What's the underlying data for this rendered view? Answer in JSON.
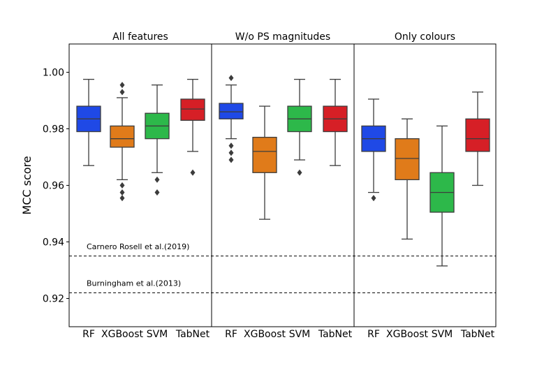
{
  "chart_data": {
    "type": "box",
    "ylabel": "MCC score",
    "ylim": [
      0.91,
      1.01
    ],
    "yticks": [
      "0.92",
      "0.94",
      "0.96",
      "0.98",
      "1.00"
    ],
    "grid": false,
    "categories": [
      "RF",
      "XGBoost",
      "SVM",
      "TabNet"
    ],
    "colors": {
      "RF": "#1f49e6",
      "XGBoost": "#e07b1a",
      "SVM": "#2db84a",
      "TabNet": "#d61f26"
    },
    "reference_lines": [
      {
        "label": "Carnero Rosell et al.(2019)",
        "y": 0.935
      },
      {
        "label": "Burningham et al.(2013)",
        "y": 0.922
      }
    ],
    "panels": [
      {
        "title": "All features",
        "boxes": [
          {
            "category": "RF",
            "whisker_low": 0.967,
            "q1": 0.979,
            "median": 0.9835,
            "q3": 0.988,
            "whisker_high": 0.9975,
            "outliers": []
          },
          {
            "category": "XGBoost",
            "whisker_low": 0.962,
            "q1": 0.9735,
            "median": 0.9765,
            "q3": 0.981,
            "whisker_high": 0.991,
            "outliers": [
              0.9955,
              0.993,
              0.96,
              0.9575,
              0.9555
            ]
          },
          {
            "category": "SVM",
            "whisker_low": 0.9645,
            "q1": 0.9765,
            "median": 0.981,
            "q3": 0.9855,
            "whisker_high": 0.9955,
            "outliers": [
              0.962,
              0.9575
            ]
          },
          {
            "category": "TabNet",
            "whisker_low": 0.972,
            "q1": 0.983,
            "median": 0.987,
            "q3": 0.9905,
            "whisker_high": 0.9975,
            "outliers": [
              0.9645
            ]
          }
        ]
      },
      {
        "title": "W/o PS magnitudes",
        "boxes": [
          {
            "category": "RF",
            "whisker_low": 0.9765,
            "q1": 0.9835,
            "median": 0.986,
            "q3": 0.989,
            "whisker_high": 0.9955,
            "outliers": [
              0.998,
              0.974,
              0.9715,
              0.969
            ]
          },
          {
            "category": "XGBoost",
            "whisker_low": 0.948,
            "q1": 0.9645,
            "median": 0.972,
            "q3": 0.977,
            "whisker_high": 0.988,
            "outliers": []
          },
          {
            "category": "SVM",
            "whisker_low": 0.969,
            "q1": 0.979,
            "median": 0.9835,
            "q3": 0.988,
            "whisker_high": 0.9975,
            "outliers": [
              0.9645
            ]
          },
          {
            "category": "TabNet",
            "whisker_low": 0.967,
            "q1": 0.979,
            "median": 0.9835,
            "q3": 0.988,
            "whisker_high": 0.9975,
            "outliers": []
          }
        ]
      },
      {
        "title": "Only colours",
        "boxes": [
          {
            "category": "RF",
            "whisker_low": 0.9575,
            "q1": 0.972,
            "median": 0.9765,
            "q3": 0.981,
            "whisker_high": 0.9905,
            "outliers": [
              0.9555
            ]
          },
          {
            "category": "XGBoost",
            "whisker_low": 0.941,
            "q1": 0.962,
            "median": 0.9695,
            "q3": 0.9765,
            "whisker_high": 0.9835,
            "outliers": []
          },
          {
            "category": "SVM",
            "whisker_low": 0.9315,
            "q1": 0.9505,
            "median": 0.9575,
            "q3": 0.9645,
            "whisker_high": 0.981,
            "outliers": []
          },
          {
            "category": "TabNet",
            "whisker_low": 0.96,
            "q1": 0.972,
            "median": 0.9765,
            "q3": 0.9835,
            "whisker_high": 0.993,
            "outliers": []
          }
        ]
      }
    ]
  }
}
